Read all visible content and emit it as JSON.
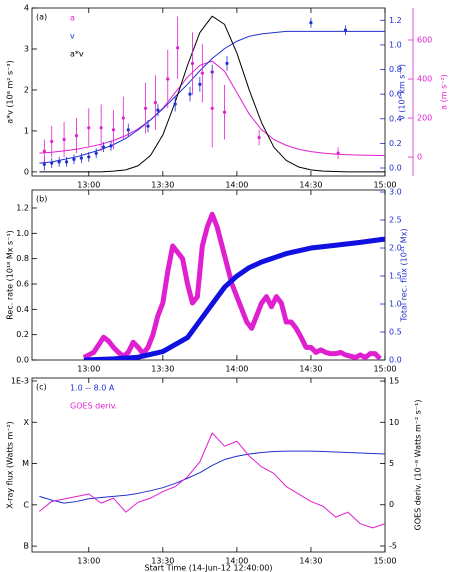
{
  "chart_data": [
    {
      "type": "line",
      "panel_label": "(a)",
      "xlim": [
        "12:37",
        "15:00"
      ],
      "xticks": [
        "13:00",
        "13:30",
        "14:00",
        "14:30",
        "15:00"
      ],
      "ylim": [
        -0.1,
        4.0
      ],
      "yticks": [
        0,
        1,
        2,
        3,
        4
      ],
      "ylabel": "a*v (10⁸ m² s⁻³)",
      "y2lim": [
        -0.065,
        1.3
      ],
      "y2color": "#2030d0",
      "y2label": "v (10³ km s⁻¹)",
      "y2ticks": [
        {
          "value": 0,
          "label": "0.0"
        },
        {
          "value": 0.2,
          "label": "0.2"
        },
        {
          "value": 0.4,
          "label": "0.4"
        },
        {
          "value": 0.6,
          "label": "0.6"
        },
        {
          "value": 0.8,
          "label": "0.8"
        },
        {
          "value": 1.0,
          "label": "1.0"
        },
        {
          "value": 1.2,
          "label": "1.2"
        }
      ],
      "y3lim": [
        -97,
        764
      ],
      "y3color": "#e020d0",
      "y3label": "a (m s⁻²)",
      "y3ticks": [
        0,
        200,
        400,
        600
      ],
      "series": [
        {
          "name": "a",
          "color": "#e020d0",
          "axis": "y3",
          "x": [
            "12:40",
            "12:45",
            "12:50",
            "12:55",
            "13:00",
            "13:05",
            "13:10",
            "13:15",
            "13:20",
            "13:25",
            "13:30",
            "13:35",
            "13:40",
            "13:45",
            "13:50",
            "13:55",
            "14:00",
            "14:05",
            "14:10",
            "14:15",
            "14:20",
            "14:25",
            "14:30",
            "14:35",
            "14:40",
            "14:45",
            "14:50",
            "14:55",
            "15:00"
          ],
          "values": [
            20,
            25,
            32,
            40,
            52,
            66,
            85,
            110,
            145,
            190,
            250,
            330,
            410,
            470,
            492,
            440,
            330,
            220,
            140,
            90,
            60,
            40,
            28,
            20,
            15,
            12,
            10,
            9,
            8
          ]
        },
        {
          "name": "v",
          "color": "#2030d0",
          "axis": "y2",
          "x": [
            "12:40",
            "12:45",
            "12:50",
            "12:55",
            "13:00",
            "13:05",
            "13:10",
            "13:15",
            "13:20",
            "13:25",
            "13:30",
            "13:35",
            "13:40",
            "13:45",
            "13:50",
            "13:55",
            "14:00",
            "14:05",
            "14:10",
            "14:15",
            "14:20",
            "14:25",
            "14:30",
            "14:35",
            "14:40",
            "14:45",
            "14:50",
            "14:55",
            "15:00"
          ],
          "values": [
            0.04,
            0.05,
            0.07,
            0.09,
            0.12,
            0.15,
            0.19,
            0.24,
            0.31,
            0.39,
            0.48,
            0.58,
            0.68,
            0.79,
            0.89,
            0.97,
            1.03,
            1.07,
            1.09,
            1.1,
            1.11,
            1.11,
            1.11,
            1.11,
            1.11,
            1.11,
            1.11,
            1.11,
            1.11
          ]
        },
        {
          "name": "a*v",
          "color": "#000000",
          "x": [
            "12:40",
            "12:45",
            "12:50",
            "12:55",
            "13:00",
            "13:05",
            "13:10",
            "13:15",
            "13:20",
            "13:25",
            "13:30",
            "13:35",
            "13:40",
            "13:45",
            "13:50",
            "13:55",
            "14:00",
            "14:05",
            "14:10",
            "14:15",
            "14:20",
            "14:25",
            "14:30",
            "14:35",
            "14:40",
            "14:45",
            "14:50",
            "14:55",
            "15:00"
          ],
          "values": [
            0,
            0,
            0,
            0,
            0,
            0,
            0.02,
            0.05,
            0.15,
            0.4,
            0.9,
            1.7,
            2.6,
            3.4,
            3.8,
            3.6,
            2.9,
            2.0,
            1.2,
            0.6,
            0.28,
            0.12,
            0.05,
            0.02,
            0.01,
            0,
            0,
            0,
            0
          ]
        },
        {
          "color": "#2030d0",
          "axis": "y2",
          "style": "points",
          "x": [
            "12:42",
            "12:45",
            "12:48",
            "12:51",
            "12:54",
            "12:57",
            "13:00",
            "13:03",
            "13:06",
            "13:09",
            "13:16",
            "13:24",
            "13:28",
            "13:35",
            "13:41",
            "13:45",
            "13:50",
            "13:56",
            "14:30",
            "14:44"
          ],
          "values": [
            0.03,
            0.04,
            0.05,
            0.05,
            0.07,
            0.08,
            0.09,
            0.12,
            0.17,
            0.18,
            0.31,
            0.34,
            0.47,
            0.52,
            0.6,
            0.68,
            0.78,
            0.85,
            1.18,
            1.12
          ],
          "errors": [
            0.05,
            0.04,
            0.04,
            0.04,
            0.04,
            0.04,
            0.04,
            0.04,
            0.04,
            0.04,
            0.05,
            0.05,
            0.05,
            0.06,
            0.06,
            0.06,
            0.06,
            0.06,
            0.04,
            0.04
          ]
        },
        {
          "color": "#e020d0",
          "axis": "y3",
          "style": "points",
          "x": [
            "12:42",
            "12:45",
            "12:50",
            "12:55",
            "13:00",
            "13:05",
            "13:10",
            "13:14",
            "13:23",
            "13:27",
            "13:32",
            "13:36",
            "13:42",
            "13:46",
            "13:50",
            "13:55",
            "14:09",
            "14:41"
          ],
          "values": [
            30,
            80,
            90,
            110,
            150,
            150,
            140,
            200,
            250,
            280,
            400,
            560,
            480,
            430,
            250,
            230,
            100,
            20
          ],
          "errors": [
            60,
            80,
            90,
            90,
            100,
            120,
            100,
            110,
            130,
            140,
            150,
            160,
            160,
            150,
            200,
            140,
            40,
            30
          ]
        }
      ]
    },
    {
      "type": "line",
      "panel_label": "(b)",
      "xlim": [
        "12:37",
        "15:00"
      ],
      "xticks": [
        "13:00",
        "13:30",
        "14:00",
        "14:30",
        "15:00"
      ],
      "ylim": [
        0,
        1.342
      ],
      "ylabel": "Rec. rate (10¹⁸ Mx s⁻¹)",
      "yticks": [
        {
          "value": 0,
          "label": "0.0"
        },
        {
          "value": 0.2,
          "label": "0.2"
        },
        {
          "value": 0.4,
          "label": "0.4"
        },
        {
          "value": 0.6,
          "label": "0.6"
        },
        {
          "value": 0.8,
          "label": "0.8"
        },
        {
          "value": 1.0,
          "label": "1.0"
        },
        {
          "value": 1.2,
          "label": "1.2"
        }
      ],
      "y2lim": [
        0,
        3.036
      ],
      "y2color": "#2030d0",
      "y2label": "Total rec. flux (10²¹ Mx)",
      "y2ticks": [
        {
          "value": 0,
          "label": "0.0"
        },
        {
          "value": 0.5,
          "label": "0.5"
        },
        {
          "value": 1.0,
          "label": "1.0"
        },
        {
          "value": 1.5,
          "label": "1.5"
        },
        {
          "value": 2.0,
          "label": "2.0"
        },
        {
          "value": 2.5,
          "label": "2.5"
        },
        {
          "value": 3.0,
          "label": "3.0"
        }
      ],
      "series": [
        {
          "color": "#e020d0",
          "style": "thick",
          "x": [
            "12:58",
            "13:00",
            "13:02",
            "13:04",
            "13:06",
            "13:08",
            "13:10",
            "13:12",
            "13:14",
            "13:16",
            "13:18",
            "13:20",
            "13:22",
            "13:24",
            "13:26",
            "13:28",
            "13:30",
            "13:32",
            "13:34",
            "13:36",
            "13:38",
            "13:40",
            "13:42",
            "13:44",
            "13:46",
            "13:48",
            "13:50",
            "13:52",
            "13:54",
            "13:56",
            "13:58",
            "14:00",
            "14:02",
            "14:04",
            "14:06",
            "14:08",
            "14:10",
            "14:12",
            "14:14",
            "14:16",
            "14:18",
            "14:20",
            "14:22",
            "14:24",
            "14:26",
            "14:28",
            "14:30",
            "14:32",
            "14:34",
            "14:36",
            "14:38",
            "14:40",
            "14:42",
            "14:44",
            "14:46",
            "14:48",
            "14:50",
            "14:52",
            "14:54",
            "14:56",
            "14:58"
          ],
          "values": [
            0.02,
            0.04,
            0.06,
            0.12,
            0.18,
            0.15,
            0.1,
            0.06,
            0.03,
            0.06,
            0.14,
            0.1,
            0.05,
            0.1,
            0.2,
            0.35,
            0.45,
            0.7,
            0.9,
            0.85,
            0.8,
            0.6,
            0.45,
            0.5,
            0.9,
            1.05,
            1.15,
            1.05,
            0.9,
            0.75,
            0.6,
            0.5,
            0.4,
            0.3,
            0.25,
            0.35,
            0.45,
            0.5,
            0.42,
            0.5,
            0.45,
            0.3,
            0.3,
            0.25,
            0.18,
            0.1,
            0.1,
            0.06,
            0.08,
            0.06,
            0.05,
            0.05,
            0.06,
            0.04,
            0.03,
            0.02,
            0.04,
            0.02,
            0.05,
            0.05,
            0.01
          ]
        },
        {
          "color": "#1010e0",
          "axis": "y2",
          "style": "thick",
          "x": [
            "12:58",
            "13:10",
            "13:20",
            "13:30",
            "13:40",
            "13:45",
            "13:50",
            "13:55",
            "14:00",
            "14:05",
            "14:10",
            "14:20",
            "14:30",
            "14:40",
            "14:50",
            "15:00"
          ],
          "values": [
            0,
            0.02,
            0.05,
            0.15,
            0.4,
            0.7,
            1.0,
            1.3,
            1.5,
            1.65,
            1.75,
            1.9,
            2.0,
            2.05,
            2.1,
            2.16
          ]
        }
      ]
    },
    {
      "type": "line",
      "panel_label": "(c)",
      "xlabel": "Start Time (14-Jun-12 12:40:00)",
      "xlim": [
        "12:37",
        "15:00"
      ],
      "xticks": [
        "13:00",
        "13:30",
        "14:00",
        "14:30",
        "15:00"
      ],
      "ylim": [
        7.2e-08,
        0.00118
      ],
      "ylog": true,
      "ylabel": "X-ray flux (Watts m⁻²)",
      "yticks": [
        {
          "value": 1e-07,
          "label": "B"
        },
        {
          "value": 1e-06,
          "label": "C"
        },
        {
          "value": 1e-05,
          "label": "M"
        },
        {
          "value": 0.0001,
          "label": "X"
        },
        {
          "value": 0.001,
          "label": "1E-3"
        }
      ],
      "y2lim": [
        -5.73,
        15.37
      ],
      "y2color": "#000000",
      "y2label": "GOES deriv. (10⁻⁸ Watts m⁻² s⁻¹)",
      "y2ticks": [
        -5,
        0,
        5,
        10,
        15
      ],
      "series": [
        {
          "name": "1.0 -- 8.0 A",
          "color": "#2030d0",
          "x": [
            "12:40",
            "12:45",
            "12:50",
            "12:55",
            "13:00",
            "13:05",
            "13:10",
            "13:15",
            "13:20",
            "13:25",
            "13:30",
            "13:35",
            "13:40",
            "13:45",
            "13:50",
            "13:55",
            "14:00",
            "14:05",
            "14:10",
            "14:15",
            "14:20",
            "14:25",
            "14:30",
            "14:35",
            "14:40",
            "14:45",
            "14:50",
            "14:55",
            "15:00"
          ],
          "values": [
            1.6e-06,
            1.3e-06,
            1.1e-06,
            1.2e-06,
            1.4e-06,
            1.5e-06,
            1.6e-06,
            1.7e-06,
            1.9e-06,
            2.2e-06,
            2.6e-06,
            3.3e-06,
            4.4e-06,
            6e-06,
            9e-06,
            1.25e-05,
            1.5e-05,
            1.7e-05,
            1.85e-05,
            1.95e-05,
            2e-05,
            2e-05,
            2e-05,
            1.95e-05,
            1.9e-05,
            1.85e-05,
            1.8e-05,
            1.75e-05,
            1.7e-05
          ]
        },
        {
          "name": "GOES deriv.",
          "color": "#e020d0",
          "axis": "y2",
          "x": [
            "12:40",
            "12:45",
            "12:50",
            "12:55",
            "13:00",
            "13:05",
            "13:10",
            "13:15",
            "13:20",
            "13:25",
            "13:30",
            "13:35",
            "13:40",
            "13:45",
            "13:50",
            "13:55",
            "14:00",
            "14:05",
            "14:10",
            "14:15",
            "14:20",
            "14:25",
            "14:30",
            "14:35",
            "14:40",
            "14:45",
            "14:50",
            "14:55",
            "15:00"
          ],
          "values": [
            -0.8,
            0.4,
            0.7,
            1.0,
            1.3,
            0.2,
            0.8,
            -0.9,
            0.3,
            0.8,
            1.6,
            2.2,
            3.4,
            5.2,
            8.7,
            7.1,
            7.7,
            5.9,
            4.6,
            3.8,
            2.2,
            1.3,
            0.4,
            -0.2,
            -1.5,
            -0.9,
            -2.3,
            -2.8,
            -2.3
          ]
        }
      ]
    }
  ]
}
